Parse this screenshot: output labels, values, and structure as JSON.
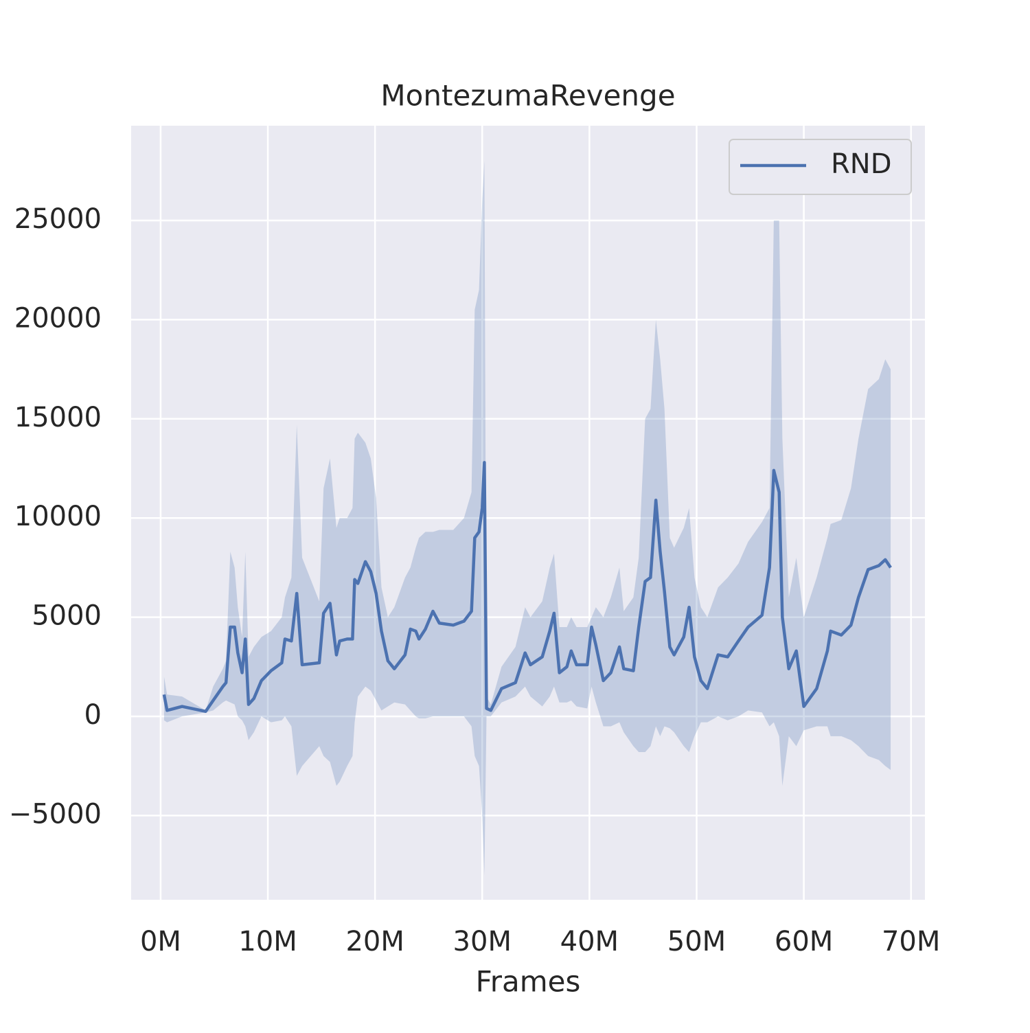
{
  "chart_data": {
    "type": "line",
    "title": "MontezumaRevenge",
    "xlabel": "Frames",
    "grid": true,
    "legend": "upper right",
    "xlim": [
      -2.75,
      71.3
    ],
    "ylim": [
      -9245,
      29778
    ],
    "xticks": [
      {
        "value": 0,
        "label": "0M"
      },
      {
        "value": 10,
        "label": "10M"
      },
      {
        "value": 20,
        "label": "20M"
      },
      {
        "value": 30,
        "label": "30M"
      },
      {
        "value": 40,
        "label": "40M"
      },
      {
        "value": 50,
        "label": "50M"
      },
      {
        "value": 60,
        "label": "60M"
      },
      {
        "value": 70,
        "label": "70M"
      }
    ],
    "yticks": [
      {
        "value": -5000,
        "label": "−5000"
      },
      0,
      5000,
      10000,
      15000,
      20000,
      25000
    ],
    "x": [
      0.32,
      0.6,
      2.0,
      4.2,
      4.9,
      5.8,
      6.1,
      6.5,
      6.9,
      7.2,
      7.6,
      7.9,
      8.2,
      8.7,
      9.4,
      10.3,
      11.3,
      11.6,
      12.2,
      12.7,
      13.2,
      14.8,
      15.2,
      15.8,
      16.4,
      16.7,
      17.4,
      17.9,
      18.1,
      18.4,
      19.1,
      19.6,
      20.1,
      20.6,
      21.2,
      21.8,
      22.8,
      23.3,
      23.8,
      24.1,
      24.7,
      25.4,
      26.0,
      27.3,
      28.3,
      29.0,
      29.3,
      29.7,
      30.0,
      30.2,
      30.4,
      30.8,
      31.8,
      33.1,
      34.0,
      34.5,
      35.6,
      36.3,
      36.7,
      37.2,
      37.9,
      38.3,
      38.8,
      39.8,
      40.2,
      40.6,
      41.3,
      42.0,
      42.8,
      43.2,
      44.1,
      44.6,
      45.2,
      45.7,
      46.2,
      46.6,
      47.0,
      47.5,
      47.9,
      48.8,
      49.3,
      49.8,
      50.4,
      51.0,
      52.0,
      52.9,
      53.9,
      54.8,
      56.1,
      56.8,
      57.2,
      57.7,
      58.0,
      58.6,
      59.3,
      60.0,
      61.2,
      62.2,
      62.5,
      63.5,
      64.4,
      65.1,
      66.0,
      67.0,
      67.6,
      68.1
    ],
    "series": [
      {
        "name": "RND",
        "color": "#4c72b0",
        "values": [
          1100,
          300,
          500,
          250,
          800,
          1500,
          1700,
          4500,
          4500,
          3200,
          2200,
          3900,
          600,
          900,
          1800,
          2300,
          2700,
          3900,
          3800,
          6200,
          2600,
          2700,
          5200,
          5700,
          3100,
          3800,
          3900,
          3900,
          6900,
          6700,
          7800,
          7300,
          6200,
          4300,
          2800,
          2400,
          3100,
          4400,
          4300,
          3900,
          4400,
          5300,
          4700,
          4600,
          4800,
          5300,
          9000,
          9300,
          10500,
          12800,
          400,
          300,
          1400,
          1700,
          3200,
          2600,
          3000,
          4300,
          5200,
          2200,
          2500,
          3300,
          2600,
          2600,
          4500,
          3600,
          1800,
          2200,
          3500,
          2400,
          2300,
          4500,
          6800,
          7000,
          10900,
          8300,
          6300,
          3500,
          3100,
          4000,
          5500,
          3000,
          1800,
          1400,
          3100,
          3000,
          3800,
          4500,
          5100,
          7500,
          12400,
          11300,
          5000,
          2400,
          3300,
          500,
          1400,
          3300,
          4300,
          4100,
          4600,
          6000,
          7400,
          7600,
          7900,
          7500
        ],
        "lower": [
          -200,
          -300,
          0,
          200,
          300,
          700,
          800,
          700,
          600,
          0,
          -200,
          -500,
          -1200,
          -800,
          0,
          -300,
          -200,
          0,
          -500,
          -3000,
          -2500,
          -1500,
          -2000,
          -2300,
          -3500,
          -3300,
          -2500,
          -2000,
          -300,
          1000,
          1500,
          1300,
          800,
          300,
          500,
          700,
          600,
          300,
          0,
          -100,
          -100,
          0,
          0,
          0,
          0,
          -500,
          -2000,
          -2500,
          -5000,
          -8000,
          0,
          0,
          700,
          1000,
          1500,
          1000,
          500,
          1000,
          1500,
          700,
          700,
          800,
          500,
          400,
          1500,
          700,
          -500,
          -500,
          -300,
          -800,
          -1500,
          -1800,
          -1800,
          -1500,
          -500,
          -1000,
          -500,
          -600,
          -800,
          -1500,
          -1800,
          -1000,
          -300,
          -300,
          0,
          -200,
          0,
          300,
          200,
          -500,
          -300,
          -1000,
          -3500,
          -1000,
          -1500,
          -700,
          -500,
          -500,
          -1000,
          -1000,
          -1200,
          -1500,
          -2000,
          -2200,
          -2500,
          -2700
        ],
        "upper": [
          2000,
          1100,
          1000,
          300,
          1500,
          2400,
          2800,
          8300,
          7500,
          5500,
          4000,
          8300,
          3000,
          3500,
          4000,
          4300,
          5000,
          6000,
          7000,
          14700,
          8000,
          5800,
          11500,
          13000,
          9500,
          10000,
          10000,
          10500,
          14000,
          14300,
          13800,
          13000,
          11000,
          6500,
          5000,
          5500,
          7000,
          7500,
          8500,
          9000,
          9300,
          9300,
          9400,
          9400,
          10000,
          11300,
          20500,
          21500,
          26000,
          28000,
          1000,
          600,
          2500,
          3500,
          5500,
          5000,
          5800,
          7500,
          8200,
          4500,
          4500,
          5000,
          4500,
          4500,
          5000,
          5500,
          5000,
          6000,
          7500,
          5300,
          6000,
          8000,
          15000,
          15500,
          20000,
          18000,
          15500,
          9000,
          8500,
          9500,
          10500,
          7000,
          5500,
          5000,
          6500,
          7000,
          7700,
          8800,
          9800,
          10500,
          25000,
          25000,
          14000,
          6000,
          8000,
          5000,
          7000,
          9000,
          9700,
          9900,
          11500,
          14000,
          16500,
          17000,
          18000,
          17500
        ]
      }
    ]
  }
}
